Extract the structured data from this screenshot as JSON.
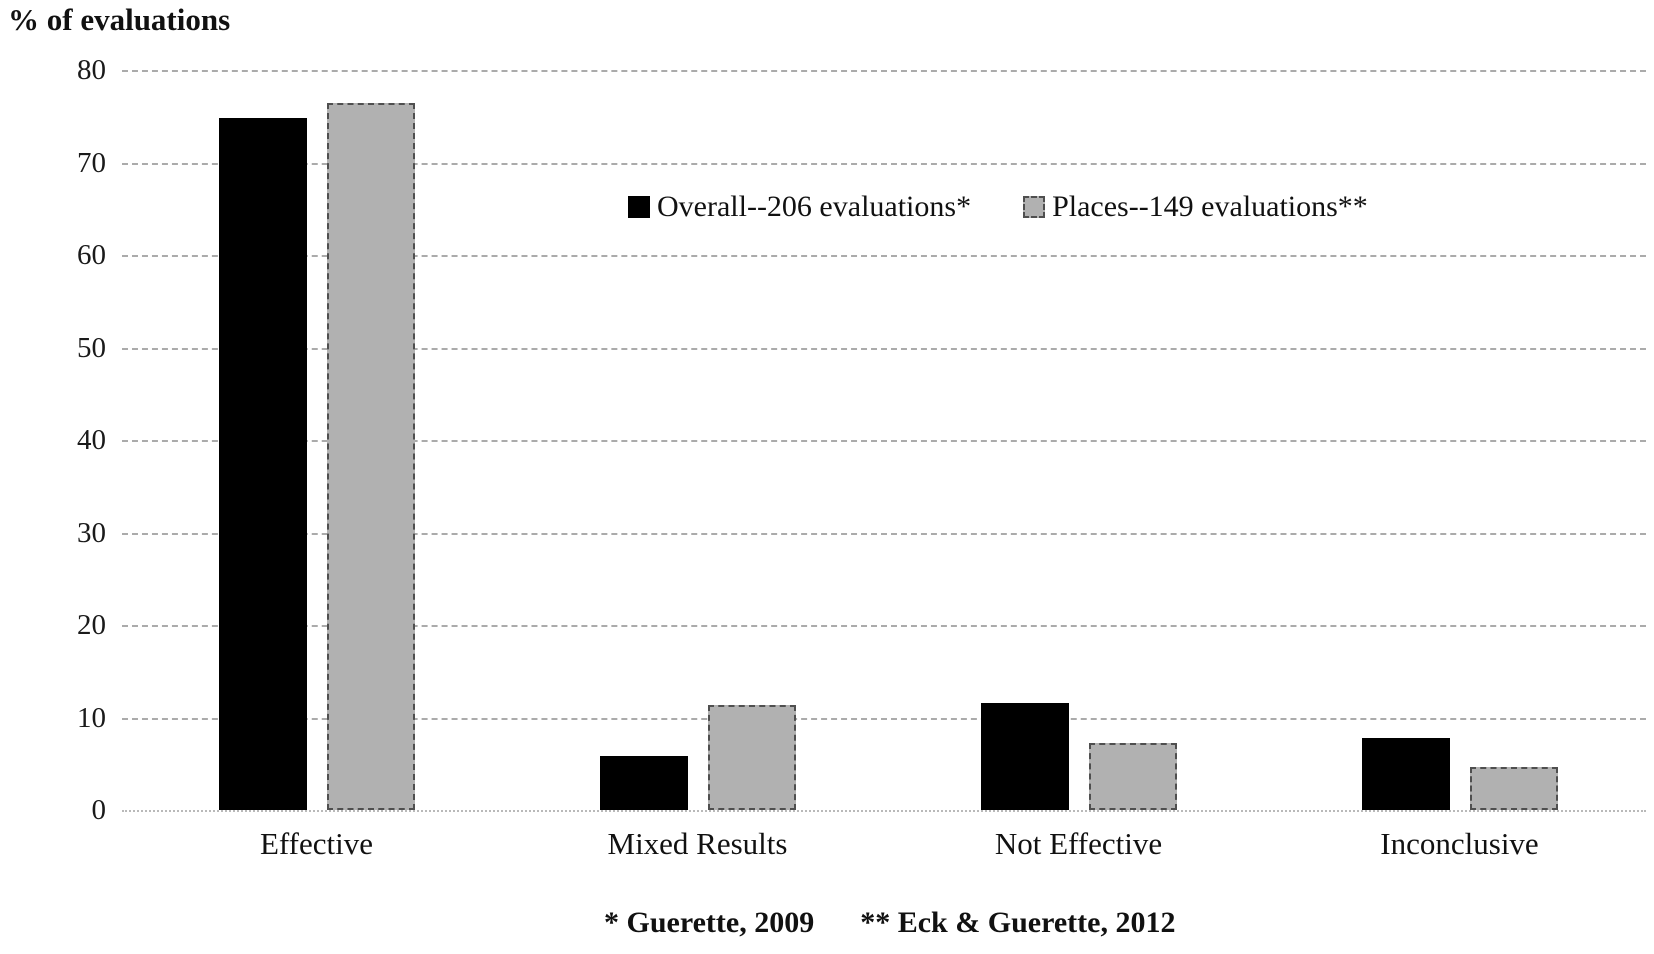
{
  "title": "% of evaluations",
  "chart_data": {
    "type": "bar",
    "categories": [
      "Effective",
      "Mixed Results",
      "Not Effective",
      "Inconclusive"
    ],
    "series": [
      {
        "name": "Overall--206 evaluations*",
        "color": "#000000",
        "values": [
          74.8,
          5.8,
          11.6,
          7.8
        ]
      },
      {
        "name": "Places--149 evaluations**",
        "color": "#b1b1b1",
        "values": [
          76.4,
          11.3,
          7.2,
          4.6
        ]
      }
    ],
    "ylabel": "% of evaluations",
    "ylim": [
      0,
      80
    ],
    "ytick_step": 10,
    "ytick_labels": [
      "0",
      "10",
      "20",
      "30",
      "40",
      "50",
      "60",
      "70",
      "80"
    ],
    "grid": "horizontal-dashed",
    "legend_position": "top-center-inside",
    "colors": {
      "series_black": "#000000",
      "series_gray": "#b1b1b1",
      "gridline": "#ababab"
    }
  },
  "footnote": {
    "note1": "* Guerette, 2009",
    "note2": "** Eck & Guerette, 2012"
  }
}
